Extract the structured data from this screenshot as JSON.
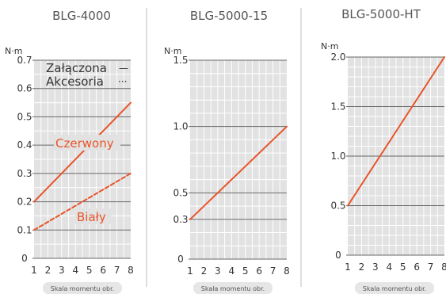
{
  "colors": {
    "line": "#e8542a",
    "grid": "#ffffff",
    "plot_bg": "#e2e2e2",
    "separator": "#bdbdbd",
    "pill_bg": "#e6e6e6",
    "text": "#333333",
    "title": "#555555"
  },
  "panels": [
    {
      "title": "BLG-4000",
      "unit": "N·m",
      "axis_label": "Skala momentu obr."
    },
    {
      "title": "BLG-5000-15",
      "unit": "N·m",
      "axis_label": "Skala momentu obr."
    },
    {
      "title": "BLG-5000-HT",
      "unit": "N·m",
      "axis_label": "Skala momentu obr."
    }
  ],
  "legend": {
    "included": "Załączona",
    "included_symbol": "—",
    "accessory": "Akcesoria",
    "accessory_symbol": "···"
  },
  "chart_data": [
    {
      "type": "line",
      "title": "BLG-4000",
      "ylabel": "N·m",
      "xlabel": "Skala momentu obr.",
      "xlim": [
        1,
        8
      ],
      "ylim": [
        0,
        0.7
      ],
      "x_ticks": [
        "1",
        "2",
        "3",
        "4",
        "5",
        "6",
        "7",
        "8"
      ],
      "y_ticks": [
        {
          "value": 0,
          "label": "0"
        },
        {
          "value": 0.1,
          "label": "0.1"
        },
        {
          "value": 0.2,
          "label": "0.2"
        },
        {
          "value": 0.3,
          "label": "0.3"
        },
        {
          "value": 0.4,
          "label": "0.4"
        },
        {
          "value": 0.5,
          "label": "0.5"
        },
        {
          "value": 0.6,
          "label": "0.6"
        },
        {
          "value": 0.7,
          "label": "0.7"
        }
      ],
      "series": [
        {
          "name": "Czerwony",
          "style": "solid",
          "x": [
            1,
            8
          ],
          "y": [
            0.2,
            0.55
          ]
        },
        {
          "name": "Biały",
          "style": "dashed",
          "x": [
            1,
            8
          ],
          "y": [
            0.1,
            0.3
          ]
        }
      ],
      "legend": "top-left",
      "grid": true
    },
    {
      "type": "line",
      "title": "BLG-5000-15",
      "ylabel": "N·m",
      "xlabel": "Skala momentu obr.",
      "xlim": [
        1,
        8
      ],
      "ylim": [
        0,
        1.5
      ],
      "x_ticks": [
        "1",
        "2",
        "3",
        "4",
        "5",
        "6",
        "7",
        "8"
      ],
      "y_ticks": [
        {
          "value": 0,
          "label": "0"
        },
        {
          "value": 0.3,
          "label": "0.3"
        },
        {
          "value": 0.5,
          "label": "0.5"
        },
        {
          "value": 1.0,
          "label": "1.0"
        },
        {
          "value": 1.5,
          "label": "1.5"
        }
      ],
      "series": [
        {
          "style": "solid",
          "x": [
            1,
            8
          ],
          "y": [
            0.3,
            1.0
          ]
        }
      ],
      "grid": true
    },
    {
      "type": "line",
      "title": "BLG-5000-HT",
      "ylabel": "N·m",
      "xlabel": "Skala momentu obr.",
      "xlim": [
        1,
        8
      ],
      "ylim": [
        0,
        2.0
      ],
      "x_ticks": [
        "1",
        "2",
        "3",
        "4",
        "5",
        "6",
        "7",
        "8"
      ],
      "y_ticks": [
        {
          "value": 0,
          "label": "0"
        },
        {
          "value": 0.5,
          "label": "0.5"
        },
        {
          "value": 1.0,
          "label": "1.0"
        },
        {
          "value": 1.5,
          "label": "1.5"
        },
        {
          "value": 2.0,
          "label": "2.0"
        }
      ],
      "series": [
        {
          "style": "solid",
          "x": [
            1,
            8
          ],
          "y": [
            0.5,
            2.0
          ]
        }
      ],
      "grid": true
    }
  ]
}
